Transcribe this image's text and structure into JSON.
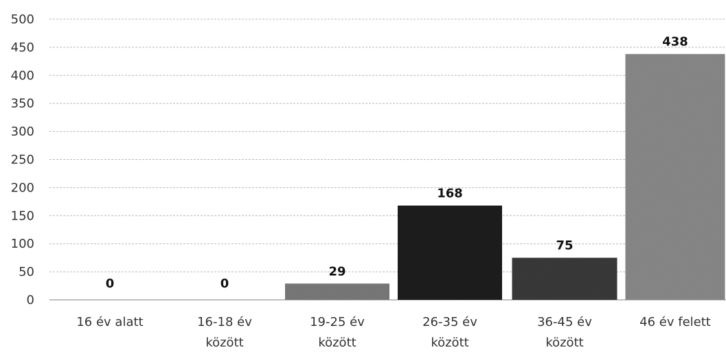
{
  "chart_data": {
    "type": "bar",
    "title": "",
    "xlabel": "",
    "ylabel": "",
    "categories": [
      [
        "16 év alatt"
      ],
      [
        "16-18 év",
        "között"
      ],
      [
        "19-25 év",
        "között"
      ],
      [
        "26-35 év",
        "között"
      ],
      [
        "36-45 év",
        "között"
      ],
      [
        "46 év felett"
      ]
    ],
    "values": [
      0,
      0,
      29,
      168,
      75,
      438
    ],
    "ylim": [
      0,
      500
    ],
    "yticks": [
      0,
      50,
      100,
      150,
      200,
      250,
      300,
      350,
      400,
      450,
      500
    ],
    "grid": true,
    "legend": "none",
    "bar_colors": [
      "#777777",
      "#777777",
      "#7a7a7a",
      "#1c1c1c",
      "#3a3a3a",
      "#8a8a8a"
    ]
  }
}
